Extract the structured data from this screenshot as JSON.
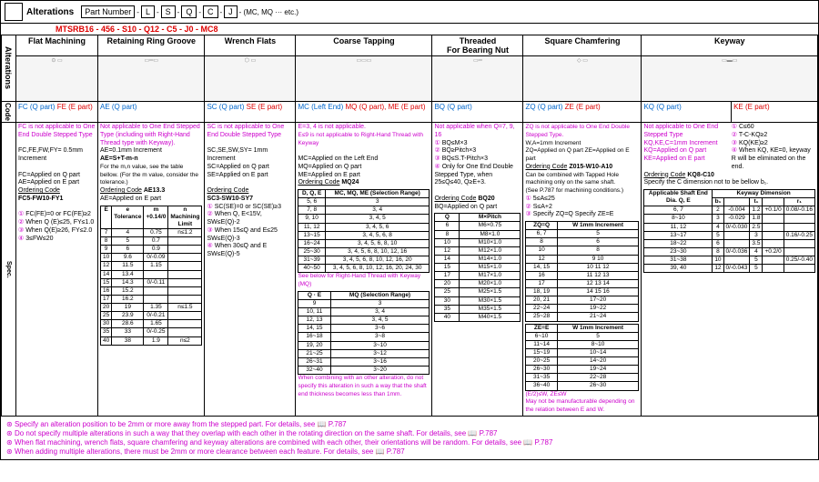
{
  "partNumber": {
    "label": "Part Number",
    "dash": "-",
    "boxes": [
      "L",
      "S",
      "Q",
      "C",
      "J"
    ],
    "suffix": "- (MC, MQ ··· etc.)"
  },
  "example": "MTSRB16 - 456 - S10 - Q12 - C5 - J0 - MC8",
  "altLabel": "Alterations",
  "headers": [
    "Flat Machining",
    "Retaining Ring Groove",
    "Wrench Flats",
    "Coarse Tapping",
    "Threaded",
    "Square Chamfering",
    "Keyway"
  ],
  "threadedSub": "For Bearing Nut",
  "codeLabel": "Code",
  "specLabel": "Spec.",
  "codes": {
    "fm": [
      "FC (Q part)",
      "FE (E part)"
    ],
    "rr": [
      "AE (Q part)"
    ],
    "wf": [
      "SC (Q part)",
      "SE (E part)"
    ],
    "ct": [
      "MC (Left End)",
      "MQ (Q part), ME (E part)"
    ],
    "th": [
      "BQ (Q part)"
    ],
    "sc": [
      "ZQ (Q part)",
      "ZE (E part)"
    ],
    "kw": [
      "KQ (Q part)",
      "KE (E part)"
    ]
  },
  "spec": {
    "fm": {
      "n1": "FC is not applicable to One End Double Stepped Type",
      "n2": "FC,FE,FW,FY= 0.5mm Increment",
      "n3": "FC=Applied on Q part\nAE=Applied on E part",
      "oc": "Ordering Code",
      "ocv": "FC5-FW10-FY1",
      "b1": "FC(FE)=0 or FC(FE)≥2",
      "b2": "When Q (E)≤25, FY≤1.0",
      "b3": "When Q(E)≥26, FY≤2.0",
      "b4": "3≤FW≤20"
    },
    "rr": {
      "n1": "Not applicable to One End Stepped Type (including with Right-Hand Thread type with Keyway).",
      "n2": "AE=0.1mm Increment",
      "n3": "AE=S+T-m-n",
      "n4": "For the m,n value, see the table bellow. (For the m value, consider the tolerance.)",
      "oc": "Ordering Code",
      "ocv": "AE13.3",
      "n5": "AE=Applied on E part",
      "t": {
        "cols": [
          "E",
          "e Tolerance",
          "m +0.14/0",
          "n Machining Limit"
        ],
        "rows": [
          [
            "7",
            "4",
            "0.75",
            "n≤1.2"
          ],
          [
            "8",
            "5",
            "0.7",
            ""
          ],
          [
            "9",
            "6",
            "0.9",
            ""
          ],
          [
            "10",
            "9.6",
            "0/-0.09",
            ""
          ],
          [
            "12",
            "11.5",
            "1.15",
            ""
          ],
          [
            "14",
            "13.4",
            "",
            ""
          ],
          [
            "15",
            "14.3",
            "0/-0.11",
            ""
          ],
          [
            "16",
            "15.2",
            "",
            ""
          ],
          [
            "17",
            "16.2",
            "",
            ""
          ],
          [
            "20",
            "19",
            "1.35",
            "n≤1.5"
          ],
          [
            "25",
            "23.9",
            "0/-0.21",
            ""
          ],
          [
            "30",
            "28.6",
            "1.65",
            ""
          ],
          [
            "35",
            "33",
            "0/-0.25",
            ""
          ],
          [
            "40",
            "38",
            "1.9",
            "n≤2"
          ]
        ]
      }
    },
    "wf": {
      "n1": "SC is not applicable to One End Double Stepped Type",
      "n2": "SC,SE,SW,SY= 1mm Increment\nSC=Applied on Q part\nSE=Applied on E part",
      "oc": "Ordering Code",
      "ocv": "SC3-SW10-SY7",
      "b1": "SC(SE)=0 or SC(SE)≥3",
      "b2": "When Q, E<15V, SW≤E(Q)-2",
      "b3": "When 15≤Q and E≤25 SW≤E(Q)-3",
      "b4": "When 30≤Q and E SW≤E(Q)-5"
    },
    "ct": {
      "n1": "E=3, 4 is not applicable.",
      "n1b": "E≤9 is not applicable to Right-Hand Thread with Keyway",
      "n2": "MC=Applied on the Left End\nMQ=Applied on Q part\nME=Applied on E part",
      "oc": "Ordering Code",
      "ocv": "MQ24",
      "t": {
        "cols": [
          "D, Q, E",
          "MC, MQ, ME (Selection Range)"
        ],
        "rows": [
          [
            "5, 6",
            "3"
          ],
          [
            "7, 8",
            "3, 4"
          ],
          [
            "9, 10",
            "3, 4, 5"
          ],
          [
            "11, 12",
            "3, 4, 5, 6"
          ],
          [
            "13~15",
            "3, 4, 5, 6, 8"
          ],
          [
            "16~24",
            "3, 4, 5, 6, 8, 10"
          ],
          [
            "25~30",
            "3, 4, 5, 6, 8, 10, 12, 16"
          ],
          [
            "31~39",
            "3, 4, 5, 6, 8, 10, 12, 16, 20"
          ],
          [
            "40~50",
            "3, 4, 5, 6, 8, 10, 12, 16, 20, 24, 30"
          ]
        ]
      },
      "sub": "See below for Right-Hand Thread with Keyway (MQ)",
      "t2": {
        "cols": [
          "Q · E",
          "MQ (Selection Range)"
        ],
        "rows": [
          [
            "9",
            "3"
          ],
          [
            "10, 11",
            "3, 4"
          ],
          [
            "12, 13",
            "3, 4, 5"
          ],
          [
            "14, 15",
            "3~6"
          ],
          [
            "16~18",
            "3~8"
          ],
          [
            "19, 20",
            "3~10"
          ],
          [
            "21~25",
            "3~12"
          ],
          [
            "26~31",
            "3~16"
          ],
          [
            "32~40",
            "3~20"
          ]
        ]
      },
      "warn": "When combining with an other alteration, do not specify this alteration in such a way that the shaft end thickness becomes less than 1mm."
    },
    "th": {
      "n1": "Not applicable when Q=7, 9, 16",
      "b1": "BQ≤M×3",
      "b2": "BQ≥Pitch×3",
      "b3": "BQ≤S.T-Pitch×3",
      "b4": "Only for One End Double Stepped Type, when 25≤Q≤40, Q≥E+3.",
      "oc": "Ordering Code",
      "ocv": "BQ20",
      "n2": "BQ=Applied on Q part",
      "t": {
        "cols": [
          "Q",
          "M×Pitch"
        ],
        "rows": [
          [
            "6",
            "M6×0.75"
          ],
          [
            "8",
            "M8×1.0"
          ],
          [
            "10",
            "M10×1.0"
          ],
          [
            "12",
            "M12×1.0"
          ],
          [
            "14",
            "M14×1.0"
          ],
          [
            "15",
            "M15×1.0"
          ],
          [
            "17",
            "M17×1.0"
          ],
          [
            "20",
            "M20×1.0"
          ],
          [
            "25",
            "M25×1.5"
          ],
          [
            "30",
            "M30×1.5"
          ],
          [
            "35",
            "M35×1.5"
          ],
          [
            "40",
            "M40×1.5"
          ]
        ]
      }
    },
    "sc": {
      "n1": "ZQ is not applicable to One End Double Stepped Type.",
      "n2": "W,A=1mm Increment\nZQ=Applied on Q part   ZE=Applied on E part",
      "oc": "Ordering Code",
      "ocv": "Z015-W10-A10",
      "n3": "Can be combined with Tapped Hole machining only on the same shaft.\n(See P.787 for machining conditions.)",
      "b1": "5≤A≤25",
      "b2": "S≤A+2",
      "b3": "Specify ZQ=Q   Specify ZE=E",
      "t": {
        "cols": [
          "ZQ=Q",
          "W 1mm Increment"
        ],
        "rows": [
          [
            "6, 7",
            "5"
          ],
          [
            "8",
            "6"
          ],
          [
            "10",
            "8"
          ],
          [
            "12",
            "9 10"
          ],
          [
            "14, 15",
            "10 11 12"
          ],
          [
            "16",
            "11 12 13"
          ],
          [
            "17",
            "12 13 14"
          ],
          [
            "18, 19",
            "14 15 16"
          ],
          [
            "20, 21",
            "17~20"
          ],
          [
            "22~24",
            "19~22"
          ],
          [
            "25~28",
            "21~24"
          ]
        ]
      },
      "t2": {
        "cols": [
          "ZE=E",
          "W 1mm Increment"
        ],
        "rows": [
          [
            "6~10",
            "5"
          ],
          [
            "11~14",
            "8~10"
          ],
          [
            "15~19",
            "10~14"
          ],
          [
            "20~25",
            "14~20"
          ],
          [
            "26~30",
            "19~24"
          ],
          [
            "31~35",
            "22~28"
          ],
          [
            "36~40",
            "26~30"
          ]
        ]
      },
      "n4": "(E/2)≤W, ZE≤W\nMay not be manufacturable depending on the relation between E and W."
    },
    "kw": {
      "n1": "Not applicable to One End Stepped Type\nKQ,KE,C=1mm Increment\nKQ=Applied on Q part\nKE=Applied on E part",
      "b1": "C≤60",
      "b2": "T-C-KQ≥2",
      "b3": "KQ(KE)≥2",
      "b4": "When KQ, KE=0, keyway R will be eliminated on the end.",
      "oc": "Ordering Code",
      "ocv": "KQ8-C10",
      "n2": "Specify the C dimension not to be bellow b₁.",
      "th": [
        "Applicable Shaft End Dia. Q, E",
        "Keyway Dimension"
      ],
      "sub": [
        "b₁",
        "t₁",
        "r₁"
      ],
      "sub2": [
        "Reference Dimension",
        "Tolerance (N9)",
        "Reference Dimension",
        "Tolerance"
      ],
      "t": {
        "rows": [
          [
            "6, 7",
            "2",
            "-0.004",
            "1.2",
            "+0.1/0",
            "0.08/-0.16"
          ],
          [
            "8~10",
            "3",
            "-0.029",
            "1.8",
            "",
            ""
          ],
          [
            "11, 12",
            "4",
            "0/-0.030",
            "2.5",
            "",
            ""
          ],
          [
            "13~17",
            "5",
            "",
            "3",
            "",
            "0.16/-0.25"
          ],
          [
            "18~22",
            "6",
            "",
            "3.5",
            "",
            ""
          ],
          [
            "23~30",
            "8",
            "0/-0.036",
            "4",
            "+0.2/0",
            ""
          ],
          [
            "31~38",
            "10",
            "",
            "5",
            "",
            "0.25/-0.40"
          ],
          [
            "39, 40",
            "12",
            "0/-0.043",
            "5",
            "",
            ""
          ]
        ]
      }
    }
  },
  "footnotes": [
    "Specify an alteration position to be 2mm or more away from the stepped part. For details, see 📖 P.787",
    "Do not specify multiple alterations in such a way that they overlap with each other in the rotating direction on the same shaft. For details, see 📖 P.787",
    "When flat machining, wrench flats, square chamfering and keyway alterations are combined with each other, their orientations will be random. For details, see 📖 P.787",
    "When adding multiple alterations, there must be 2mm or more clearance between each feature. For details, see 📖 P.787"
  ]
}
